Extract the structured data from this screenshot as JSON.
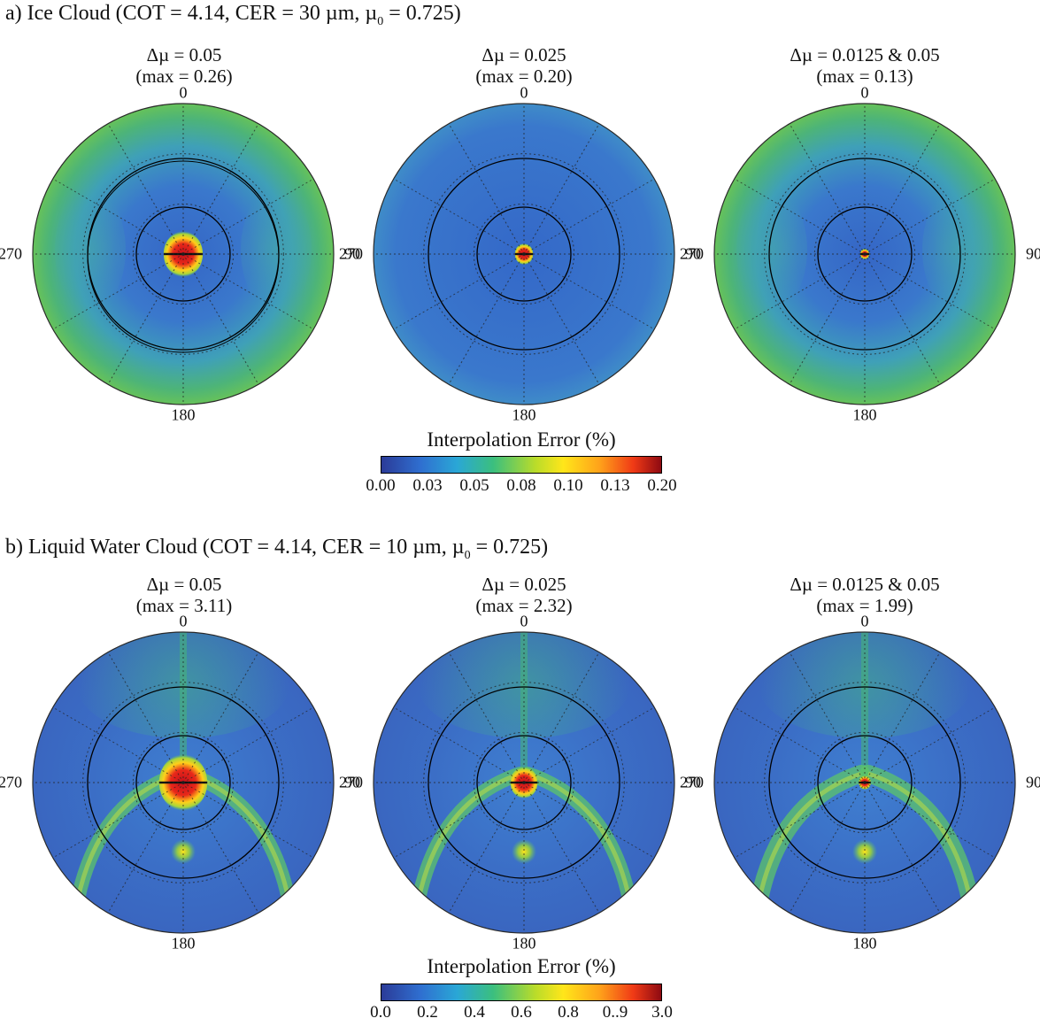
{
  "sections": [
    {
      "title": "a) Ice Cloud (COT = 4.14, CER = 30 µm, µ",
      "title_sub": "0",
      "title_end": " = 0.725)",
      "panels": [
        {
          "delta": "Δµ = 0.05",
          "max": "(max = 0.26)"
        },
        {
          "delta": "Δµ = 0.025",
          "max": "(max = 0.20)"
        },
        {
          "delta": "Δµ = 0.0125 & 0.05",
          "max": "(max = 0.13)"
        }
      ],
      "colorbar": {
        "label": "Interpolation Error (%)",
        "ticks": [
          "0.00",
          "0.03",
          "0.05",
          "0.08",
          "0.10",
          "0.13",
          "0.20"
        ]
      }
    },
    {
      "title": "b) Liquid Water Cloud (COT = 4.14, CER = 10 µm, µ",
      "title_sub": "0",
      "title_end": " = 0.725)",
      "panels": [
        {
          "delta": "Δµ = 0.05",
          "max": "(max = 3.11)"
        },
        {
          "delta": "Δµ = 0.025",
          "max": "(max = 2.32)"
        },
        {
          "delta": "Δµ = 0.0125 & 0.05",
          "max": "(max = 1.99)"
        }
      ],
      "colorbar": {
        "label": "Interpolation Error (%)",
        "ticks": [
          "0.0",
          "0.2",
          "0.4",
          "0.6",
          "0.8",
          "0..9",
          "3.0"
        ]
      }
    }
  ],
  "direction_labels": {
    "top": "0",
    "right": "90",
    "bottom": "180",
    "left": "270"
  },
  "colors": {
    "background_field": "#3a6cc6",
    "edge_green": "#4fb86a",
    "hot_red": "#d8161a",
    "hot_yellow": "#ffe01a"
  },
  "chart_data": [
    {
      "type": "heatmap",
      "title": "a) Ice Cloud (COT = 4.14, CER = 30 µm, µ0 = 0.725)",
      "projection": "polar",
      "angular_ticks": [
        "0",
        "90",
        "180",
        "270"
      ],
      "panels": [
        {
          "title": "Δµ = 0.05",
          "max_error": 0.26
        },
        {
          "title": "Δµ = 0.025",
          "max_error": 0.2
        },
        {
          "title": "Δµ = 0.0125 & 0.05",
          "max_error": 0.13
        }
      ],
      "colorbar": {
        "label": "Interpolation Error (%)",
        "range": [
          0.0,
          0.2
        ],
        "ticks": [
          "0.00",
          "0.03",
          "0.05",
          "0.08",
          "0.10",
          "0.13",
          "0.20"
        ]
      }
    },
    {
      "type": "heatmap",
      "title": "b) Liquid Water Cloud (COT = 4.14, CER = 10 µm, µ0 = 0.725)",
      "projection": "polar",
      "angular_ticks": [
        "0",
        "90",
        "180",
        "270"
      ],
      "panels": [
        {
          "title": "Δµ = 0.05",
          "max_error": 3.11
        },
        {
          "title": "Δµ = 0.025",
          "max_error": 2.32
        },
        {
          "title": "Δµ = 0.0125 & 0.05",
          "max_error": 1.99
        }
      ],
      "colorbar": {
        "label": "Interpolation Error (%)",
        "range": [
          0.0,
          3.0
        ],
        "ticks": [
          "0.0",
          "0.2",
          "0.4",
          "0.6",
          "0.8",
          "0..9",
          "3.0"
        ]
      }
    }
  ]
}
